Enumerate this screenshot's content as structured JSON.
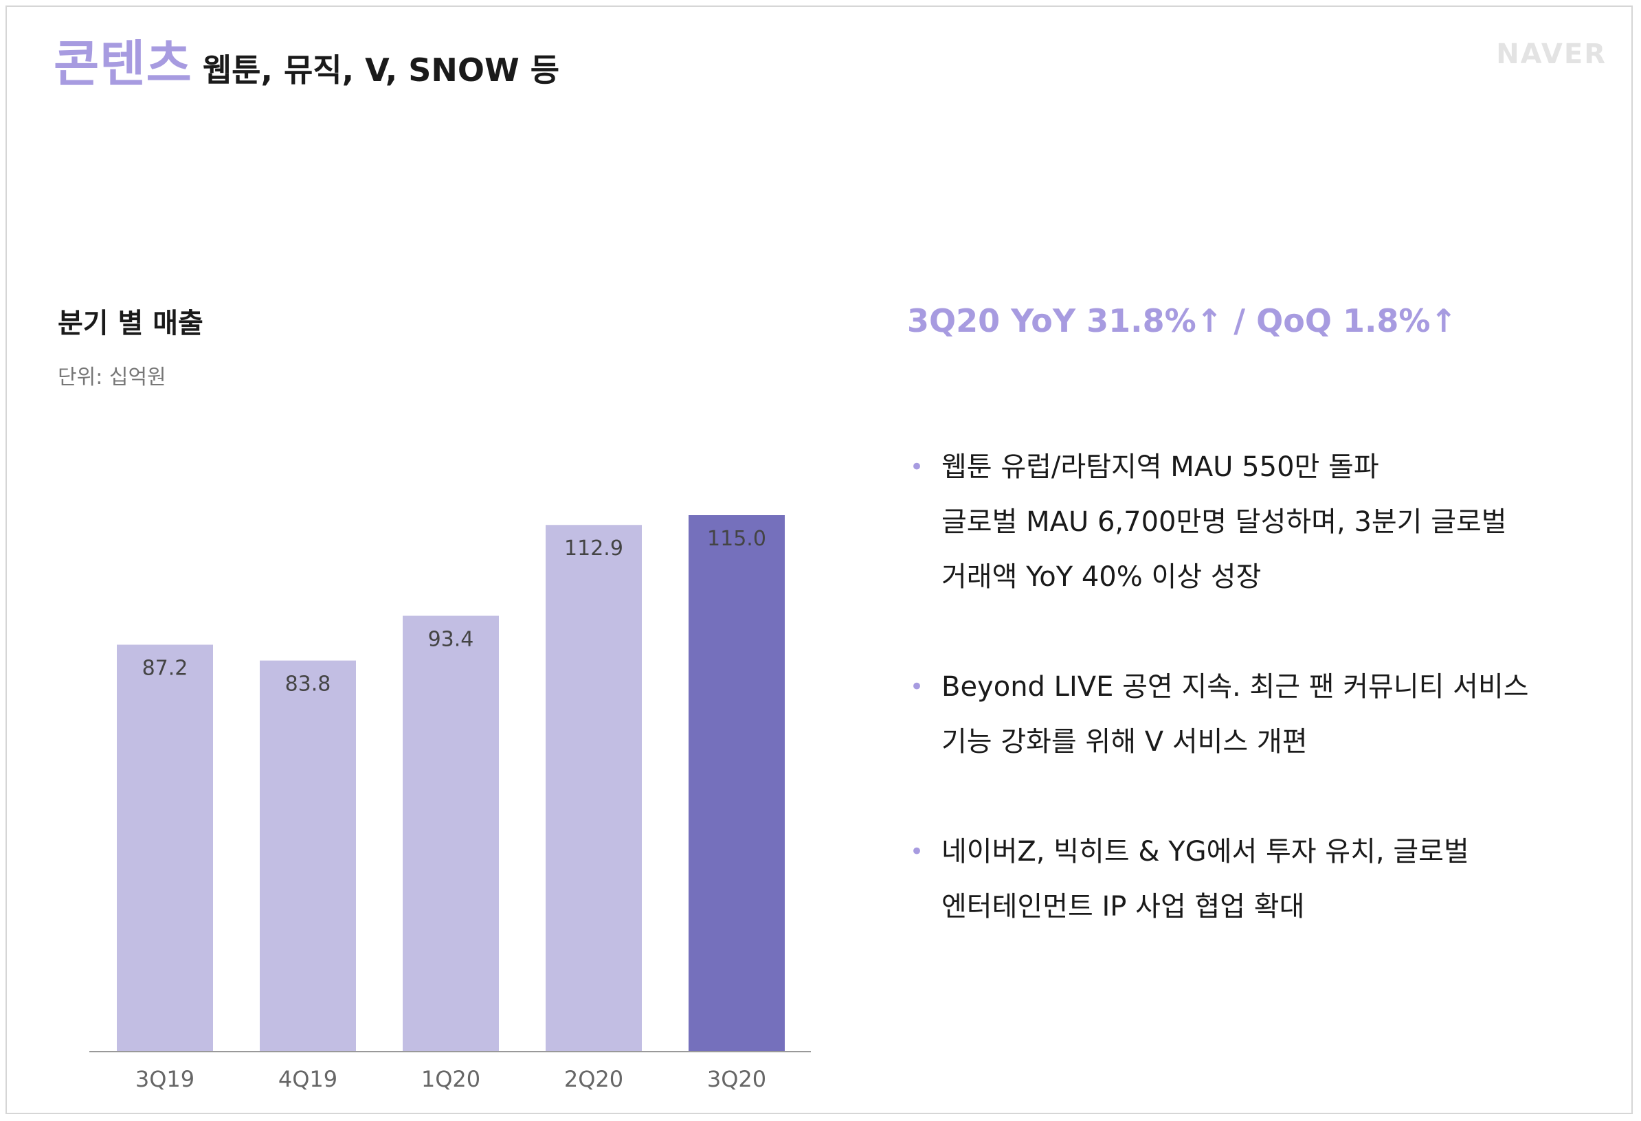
{
  "header": {
    "title_main": "콘텐츠",
    "title_sub": "웹툰, 뮤직, V, SNOW 등",
    "logo": "NAVER"
  },
  "left": {
    "section_title": "분기 별 매출",
    "unit": "단위: 십억원"
  },
  "right": {
    "highlight": "3Q20 YoY 31.8%↑ / QoQ 1.8%↑",
    "bullets": [
      {
        "lines": [
          "웹툰 유럽/라탐지역 MAU 550만 돌파",
          "글로벌 MAU 6,700만명 달성하며, 3분기 글로벌",
          "거래액 YoY 40% 이상 성장"
        ]
      },
      {
        "lines": [
          "Beyond LIVE 공연 지속. 최근 팬 커뮤니티 서비스",
          "기능 강화를 위해 V 서비스 개편"
        ]
      },
      {
        "lines": [
          "네이버Z, 빅히트 & YG에서 투자 유치, 글로벌",
          "엔터테인먼트 IP 사업 협업 확대"
        ]
      }
    ]
  },
  "chart_data": {
    "type": "bar",
    "categories": [
      "3Q19",
      "4Q19",
      "1Q20",
      "2Q20",
      "3Q20"
    ],
    "values": [
      87.2,
      83.8,
      93.4,
      112.9,
      115.0
    ],
    "value_labels": [
      "87.2",
      "83.8",
      "93.4",
      "112.9",
      "115.0"
    ],
    "title": "분기 별 매출",
    "ylabel": "단위: 십억원",
    "xlabel": "",
    "ylim": [
      0,
      115.0
    ],
    "grid": false,
    "colors": {
      "default": "#c2bee3",
      "highlight": "#7570bc"
    },
    "highlight_index": 4
  }
}
